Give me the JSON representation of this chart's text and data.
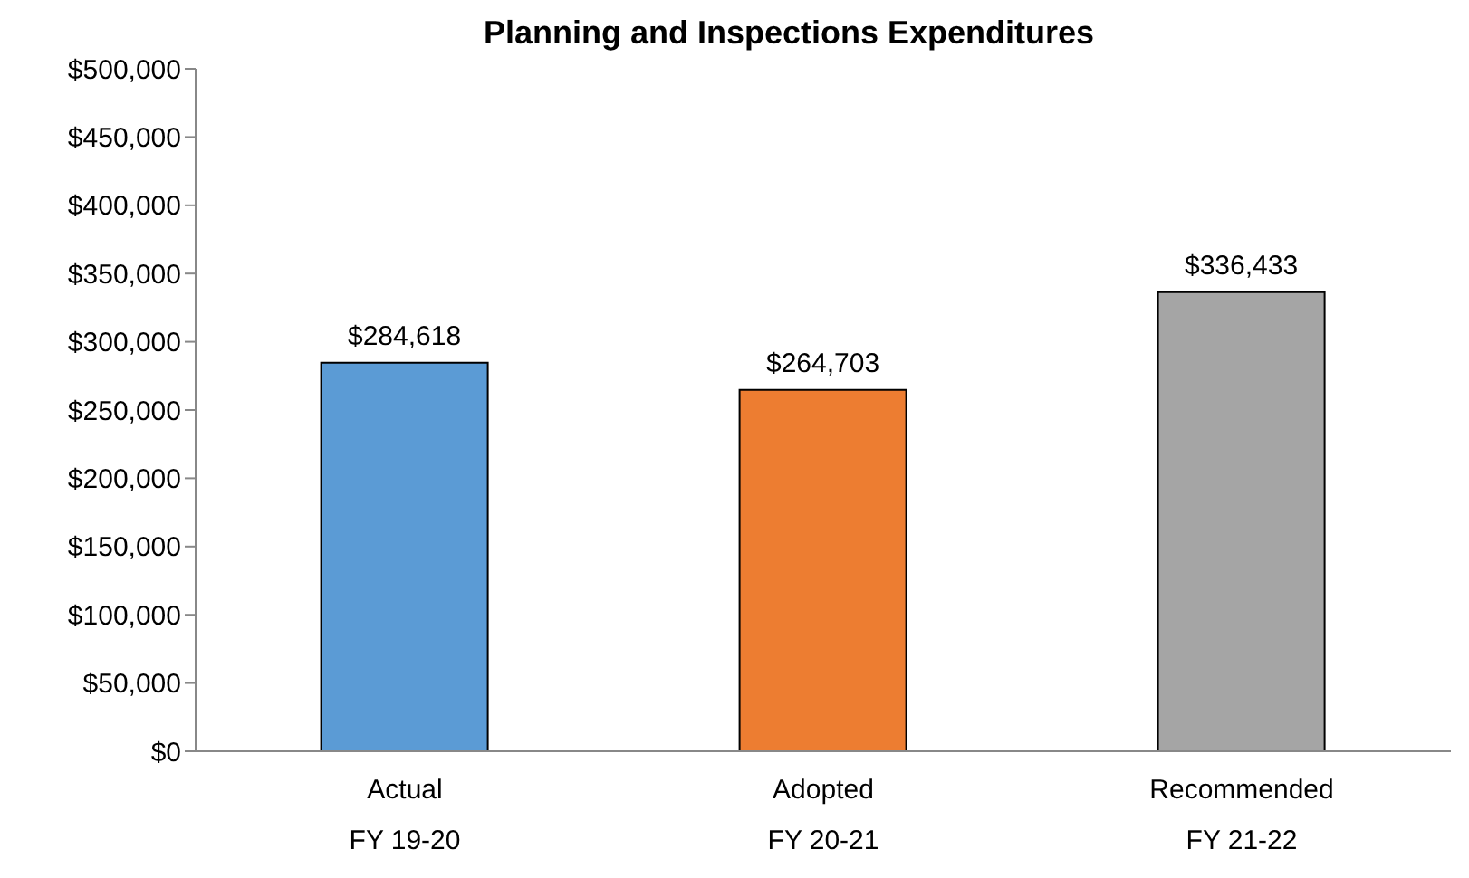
{
  "chart_data": {
    "type": "bar",
    "title": "Planning and Inspections Expenditures",
    "categories": [
      "Actual\nFY 19-20",
      "Adopted\nFY 20-21",
      "Recommended\nFY 21-22"
    ],
    "values": [
      284618,
      264703,
      336433
    ],
    "colors": [
      "#5b9bd5",
      "#ed7d31",
      "#a5a5a5"
    ],
    "ylim": [
      0,
      500000
    ],
    "yticks": [
      {
        "value": 0,
        "label": "$0"
      },
      {
        "value": 50000,
        "label": "$50,000"
      },
      {
        "value": 100000,
        "label": "$100,000"
      },
      {
        "value": 150000,
        "label": "$150,000"
      },
      {
        "value": 200000,
        "label": "$200,000"
      },
      {
        "value": 250000,
        "label": "$250,000"
      },
      {
        "value": 300000,
        "label": "$300,000"
      },
      {
        "value": 350000,
        "label": "$350,000"
      },
      {
        "value": 400000,
        "label": "$400,000"
      },
      {
        "value": 450000,
        "label": "$450,000"
      },
      {
        "value": 500000,
        "label": "$500,000"
      }
    ],
    "value_labels": [
      "$284,618",
      "$264,703",
      "$336,433"
    ],
    "grid": false
  }
}
